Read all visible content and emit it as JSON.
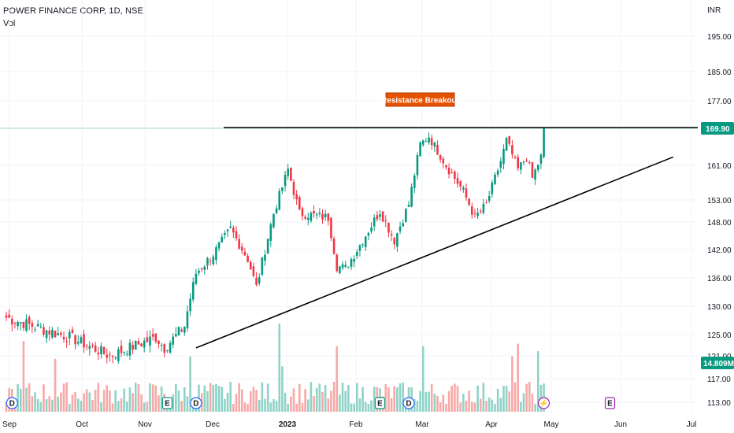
{
  "header": {
    "title": "POWER FINANCE CORP, 1D, NSE",
    "subtitle": "Vol"
  },
  "currency": "INR",
  "colors": {
    "up": "#089981",
    "down": "#f23645",
    "vol_up": "#8fd3c7",
    "vol_down": "#f7a9a7",
    "trendline": "#000000",
    "annotation_bg": "#e65100",
    "price_tag": "#089981"
  },
  "annotation": "Resistance Breakout",
  "last_price_label": "169.90",
  "volume_label": "14.809M",
  "chart_data": {
    "type": "candlestick",
    "price_axis": {
      "ticks": [
        "195.00",
        "185.00",
        "177.00",
        "169.90",
        "161.00",
        "153.00",
        "148.00",
        "142.00",
        "136.00",
        "130.00",
        "125.00",
        "121.00",
        "117.00",
        "113.00"
      ]
    },
    "time_axis": {
      "labels": [
        "Sep",
        "Oct",
        "Nov",
        "Dec",
        "2023",
        "Feb",
        "Mar",
        "Apr",
        "May",
        "Jun",
        "Jul"
      ]
    },
    "start": 128,
    "end": 169.9,
    "anchors": [
      {
        "i": 0,
        "p": 128
      },
      {
        "i": 22,
        "p": 124.5
      },
      {
        "i": 36,
        "p": 121
      },
      {
        "i": 52,
        "p": 124.5
      },
      {
        "i": 55,
        "p": 122.5
      },
      {
        "i": 62,
        "p": 126.5
      },
      {
        "i": 66,
        "p": 137
      },
      {
        "i": 72,
        "p": 141
      },
      {
        "i": 78,
        "p": 146.5
      },
      {
        "i": 84,
        "p": 140
      },
      {
        "i": 87,
        "p": 134
      },
      {
        "i": 93,
        "p": 150
      },
      {
        "i": 98,
        "p": 160
      },
      {
        "i": 102,
        "p": 150
      },
      {
        "i": 112,
        "p": 149
      },
      {
        "i": 115,
        "p": 138.5
      },
      {
        "i": 118,
        "p": 138
      },
      {
        "i": 123,
        "p": 143
      },
      {
        "i": 130,
        "p": 150.5
      },
      {
        "i": 135,
        "p": 144
      },
      {
        "i": 140,
        "p": 152
      },
      {
        "i": 144,
        "p": 166
      },
      {
        "i": 147,
        "p": 168
      },
      {
        "i": 153,
        "p": 161
      },
      {
        "i": 159,
        "p": 155
      },
      {
        "i": 163,
        "p": 149
      },
      {
        "i": 167,
        "p": 152
      },
      {
        "i": 172,
        "p": 162
      },
      {
        "i": 174,
        "p": 167
      },
      {
        "i": 178,
        "p": 160
      },
      {
        "i": 181,
        "p": 163
      },
      {
        "i": 183,
        "p": 158
      },
      {
        "i": 186,
        "p": 163
      },
      {
        "i": 187,
        "p": 169.9
      }
    ],
    "volume_spikes": [
      {
        "i": 6,
        "v": 28
      },
      {
        "i": 17,
        "v": 21
      },
      {
        "i": 64,
        "v": 22
      },
      {
        "i": 95,
        "v": 35
      },
      {
        "i": 96,
        "v": 18
      },
      {
        "i": 115,
        "v": 26
      },
      {
        "i": 145,
        "v": 26
      },
      {
        "i": 176,
        "v": 22
      },
      {
        "i": 178,
        "v": 27
      },
      {
        "i": 185,
        "v": 24
      }
    ],
    "events": [
      {
        "label": "D",
        "type": "dividend",
        "i": 2
      },
      {
        "label": "E",
        "type": "earnings",
        "i": 56
      },
      {
        "label": "D",
        "type": "dividend",
        "i": 66
      },
      {
        "label": "E",
        "type": "earnings",
        "i": 130
      },
      {
        "label": "D",
        "type": "dividend",
        "i": 140
      },
      {
        "label": "⚡",
        "type": "split",
        "i": 187
      },
      {
        "label": "E",
        "type": "earnings",
        "i": 210
      }
    ],
    "resistance_level": 169.9,
    "support_line": {
      "from": {
        "i": 66,
        "p": 122.5
      },
      "to": {
        "i": 232,
        "p": 163
      }
    }
  }
}
